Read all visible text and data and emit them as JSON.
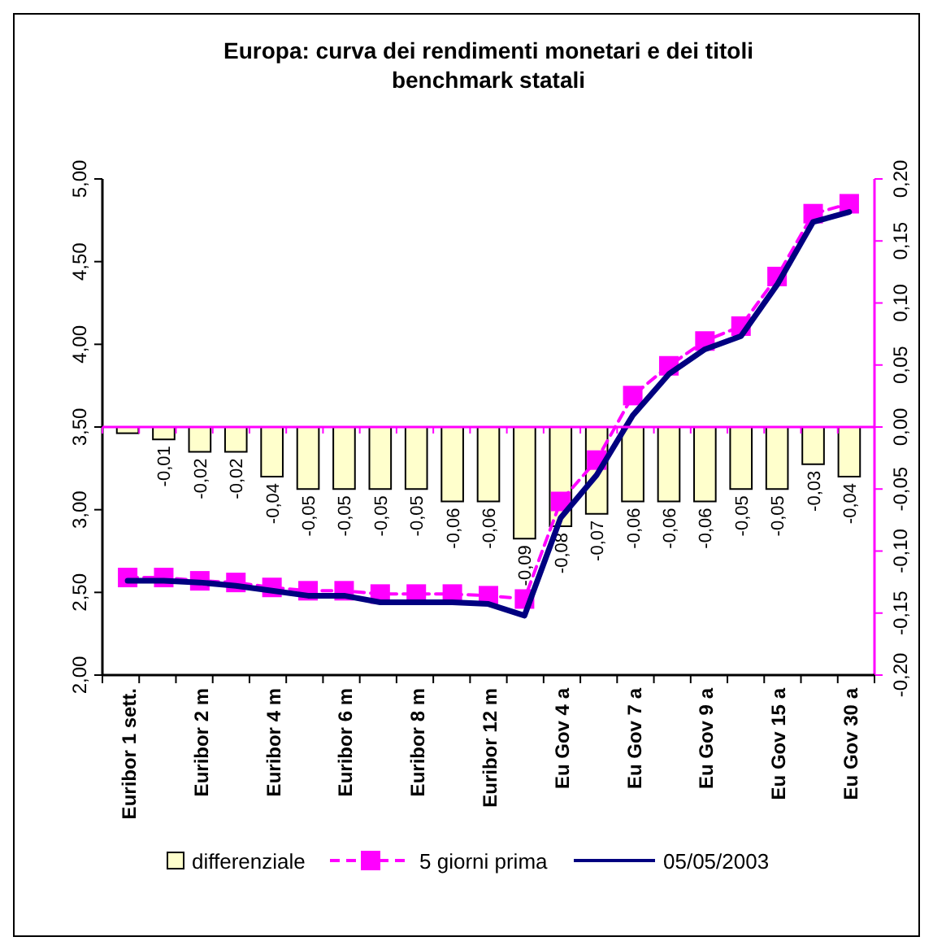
{
  "chart_data": {
    "type": "bar",
    "title": "Europa: curva dei rendimenti monetari e dei titoli\nbenchmark statali",
    "categories": [
      "Euribor 1 sett.",
      null,
      "Euribor 2 m",
      null,
      "Euribor 4 m",
      null,
      "Euribor 6 m",
      null,
      "Euribor 8 m",
      null,
      "Euribor 12 m",
      null,
      "Eu Gov 4 a",
      null,
      "Eu Gov 7 a",
      null,
      "Eu Gov 9 a",
      null,
      "Eu Gov 15 a",
      null,
      "Eu Gov 30 a"
    ],
    "series": [
      {
        "name": "differenziale",
        "axis": "y2",
        "color": "#ffffcc",
        "values": [
          -0.005,
          -0.01,
          -0.02,
          -0.02,
          -0.04,
          -0.05,
          -0.05,
          -0.05,
          -0.05,
          -0.06,
          -0.06,
          -0.09,
          -0.08,
          -0.07,
          -0.06,
          -0.06,
          -0.06,
          -0.05,
          -0.05,
          -0.03,
          -0.04
        ],
        "value_labels": [
          null,
          "-0,01",
          "-0,02",
          "-0,02",
          "-0,04",
          "-0,05",
          "-0,05",
          "-0,05",
          "-0,05",
          "-0,06",
          "-0,06",
          "-0,09",
          "-0,08",
          "-0,07",
          "-0,06",
          "-0,06",
          "-0,06",
          "-0,05",
          "-0,05",
          "-0,03",
          "-0,04"
        ]
      },
      {
        "name": "5 giorni prima",
        "type": "line",
        "color": "#ff00ff",
        "marker": "square",
        "line_style": "dashed",
        "values": [
          2.59,
          2.59,
          2.57,
          2.56,
          2.53,
          2.51,
          2.51,
          2.49,
          2.49,
          2.49,
          2.48,
          2.46,
          3.05,
          3.3,
          3.69,
          3.87,
          4.02,
          4.11,
          4.41,
          4.79,
          4.85
        ]
      },
      {
        "name": "05/05/2003",
        "type": "line",
        "color": "#000080",
        "marker": "none",
        "line_style": "solid",
        "values": [
          2.57,
          2.57,
          2.56,
          2.54,
          2.51,
          2.48,
          2.48,
          2.44,
          2.44,
          2.44,
          2.43,
          2.36,
          2.95,
          3.21,
          3.57,
          3.82,
          3.97,
          4.05,
          4.36,
          4.74,
          4.8
        ]
      }
    ],
    "ylim": [
      2,
      5
    ],
    "yticks": [
      {
        "value": 2,
        "label": "2,00"
      },
      {
        "value": 2.5,
        "label": "2,50"
      },
      {
        "value": 3,
        "label": "3,00"
      },
      {
        "value": 3.5,
        "label": "3,50"
      },
      {
        "value": 4,
        "label": "4,00"
      },
      {
        "value": 4.5,
        "label": "4,50"
      },
      {
        "value": 5,
        "label": "5,00"
      }
    ],
    "y2lim": [
      -0.2,
      0.2
    ],
    "y2ticks": [
      {
        "value": -0.2,
        "label": "-0,20"
      },
      {
        "value": -0.15,
        "label": "-0,15"
      },
      {
        "value": -0.1,
        "label": "-0,10"
      },
      {
        "value": -0.05,
        "label": "-0,05"
      },
      {
        "value": 0,
        "label": "0,00"
      },
      {
        "value": 0.05,
        "label": "0,05"
      },
      {
        "value": 0.1,
        "label": "0,10"
      },
      {
        "value": 0.15,
        "label": "0,15"
      },
      {
        "value": 0.2,
        "label": "0,20"
      }
    ],
    "ref_lines": [
      {
        "axis": "y2",
        "value": 0,
        "color": "#ff00ff"
      }
    ],
    "legend": "bottom"
  }
}
